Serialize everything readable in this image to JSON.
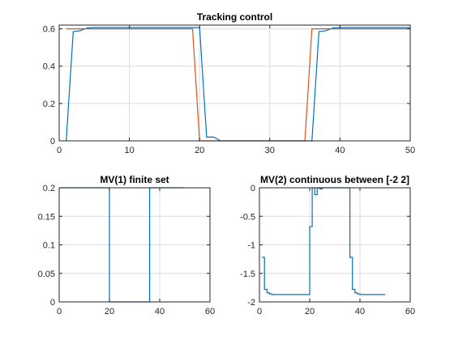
{
  "colors": {
    "series1": "#0072BD",
    "series2": "#D95319",
    "grid": "#dcdcdc",
    "axis": "#262626"
  },
  "chart_data": [
    {
      "type": "line",
      "title": "Tracking control",
      "xlim": [
        0,
        50
      ],
      "ylim": [
        0,
        0.62
      ],
      "xticks": [
        "0",
        "10",
        "20",
        "30",
        "40",
        "50"
      ],
      "yticks": [
        "0",
        "0.2",
        "0.4",
        "0.6"
      ],
      "grid": true,
      "series": [
        {
          "color_key": "series1",
          "x": [
            1,
            2,
            3,
            4,
            5,
            6,
            7,
            8,
            9,
            10,
            11,
            12,
            13,
            14,
            15,
            16,
            17,
            18,
            19,
            20,
            21,
            22,
            23,
            24,
            25,
            26,
            27,
            28,
            29,
            30,
            31,
            32,
            33,
            34,
            35,
            36,
            37,
            38,
            39,
            40,
            41,
            42,
            43,
            44,
            45,
            46,
            47,
            48,
            49,
            50
          ],
          "y": [
            0,
            0.585,
            0.59,
            0.605,
            0.607,
            0.607,
            0.607,
            0.607,
            0.607,
            0.607,
            0.607,
            0.607,
            0.607,
            0.607,
            0.607,
            0.607,
            0.607,
            0.607,
            0.607,
            0.607,
            0.02,
            0.02,
            0.0,
            0.0,
            0.0,
            0.0,
            0.0,
            0.0,
            0.0,
            0.0,
            0.0,
            0.0,
            0.0,
            0.0,
            0.0,
            0.0,
            0.585,
            0.59,
            0.605,
            0.607,
            0.607,
            0.607,
            0.607,
            0.607,
            0.607,
            0.607,
            0.607,
            0.607,
            0.607,
            0.607
          ]
        },
        {
          "color_key": "series2",
          "x": [
            1,
            2,
            19,
            20,
            35,
            36,
            37,
            50
          ],
          "y": [
            0.6,
            0.6,
            0.6,
            0.0,
            0.0,
            0.6,
            0.6,
            0.6
          ]
        }
      ]
    },
    {
      "type": "line",
      "title": "MV(1) finite set",
      "xlim": [
        0,
        60
      ],
      "ylim": [
        0,
        0.2
      ],
      "xticks": [
        "0",
        "20",
        "40",
        "60"
      ],
      "yticks": [
        "0",
        "0.05",
        "0.1",
        "0.15",
        "0.2"
      ],
      "grid": true,
      "stairs": true,
      "series": [
        {
          "color_key": "series1",
          "x": [
            0,
            1,
            2,
            19,
            20,
            21,
            35,
            36,
            37,
            50
          ],
          "y": [
            0.2,
            0.2,
            0.2,
            0.2,
            0,
            0,
            0,
            0.2,
            0.2,
            0.2
          ]
        }
      ]
    },
    {
      "type": "line",
      "title": "MV(2) continuous between [-2 2]",
      "xlim": [
        0,
        60
      ],
      "ylim": [
        -2,
        0
      ],
      "xticks": [
        "0",
        "20",
        "40",
        "60"
      ],
      "yticks": [
        "-2",
        "-1.5",
        "-1",
        "-0.5",
        "0"
      ],
      "grid": true,
      "stairs": true,
      "series": [
        {
          "color_key": "series1",
          "x": [
            1,
            2,
            3,
            4,
            5,
            6,
            7,
            8,
            9,
            10,
            11,
            12,
            13,
            14,
            15,
            16,
            17,
            18,
            19,
            20,
            21,
            22,
            23,
            24,
            25,
            26,
            27,
            28,
            29,
            30,
            31,
            32,
            33,
            34,
            35,
            36,
            37,
            38,
            39,
            40,
            41,
            42,
            43,
            44,
            45,
            46,
            47,
            48,
            49,
            50
          ],
          "y": [
            -1.22,
            -1.78,
            -1.84,
            -1.86,
            -1.87,
            -1.87,
            -1.87,
            -1.87,
            -1.87,
            -1.87,
            -1.87,
            -1.87,
            -1.87,
            -1.87,
            -1.87,
            -1.87,
            -1.87,
            -1.87,
            -1.87,
            -0.68,
            0,
            -0.12,
            0,
            -0.02,
            0,
            0,
            0,
            0,
            0,
            0,
            0,
            0,
            0,
            0,
            0,
            -1.22,
            -1.78,
            -1.84,
            -1.86,
            -1.87,
            -1.87,
            -1.87,
            -1.87,
            -1.87,
            -1.87,
            -1.87,
            -1.87,
            -1.87,
            -1.87,
            -1.87
          ]
        }
      ]
    }
  ]
}
